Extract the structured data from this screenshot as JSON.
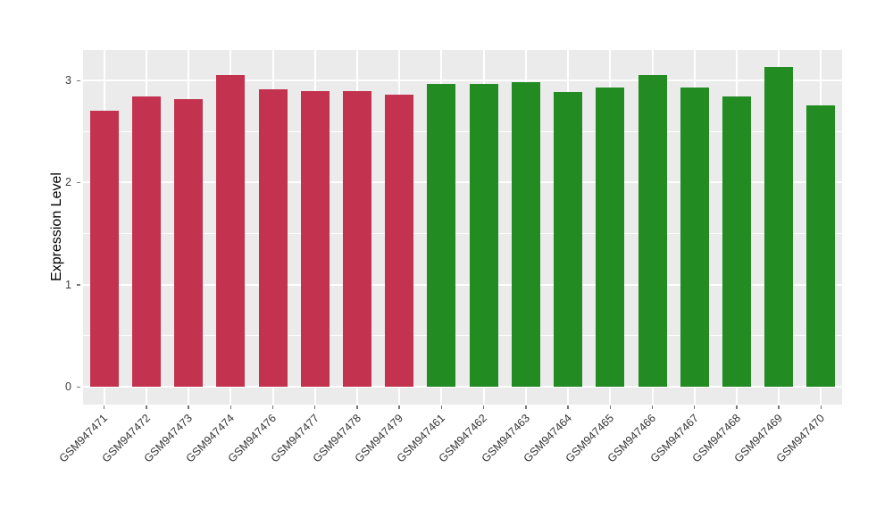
{
  "colors": {
    "red_group": "#C3324E",
    "green_group": "#228B22",
    "panel_background": "#EBEBEB",
    "gridline": "#FFFFFF",
    "tick_mark": "#777777",
    "axis_text": "#404040",
    "x_label_text": "#333333"
  },
  "chart_data": {
    "type": "bar",
    "title": "",
    "xlabel": "",
    "ylabel": "Expression Level",
    "legend": "none",
    "grid": "on",
    "ylim": [
      -0.17,
      3.3
    ],
    "yticks": [
      0,
      1,
      2,
      3
    ],
    "ytick_labels": [
      "0",
      "1",
      "2",
      "3"
    ],
    "minor_yticks": [
      0.5,
      1.5,
      2.5
    ],
    "xticklabel_angle": 45,
    "categories": [
      "GSM947471",
      "GSM947472",
      "GSM947473",
      "GSM947474",
      "GSM947476",
      "GSM947477",
      "GSM947478",
      "GSM947479",
      "GSM947461",
      "GSM947462",
      "GSM947463",
      "GSM947464",
      "GSM947465",
      "GSM947466",
      "GSM947467",
      "GSM947468",
      "GSM947469",
      "GSM947470"
    ],
    "bars": [
      {
        "label": "GSM947471",
        "value": 2.7,
        "color_key": "red_group"
      },
      {
        "label": "GSM947472",
        "value": 2.84,
        "color_key": "red_group"
      },
      {
        "label": "GSM947473",
        "value": 2.82,
        "color_key": "red_group"
      },
      {
        "label": "GSM947474",
        "value": 3.05,
        "color_key": "red_group"
      },
      {
        "label": "GSM947476",
        "value": 2.91,
        "color_key": "red_group"
      },
      {
        "label": "GSM947477",
        "value": 2.9,
        "color_key": "red_group"
      },
      {
        "label": "GSM947478",
        "value": 2.9,
        "color_key": "red_group"
      },
      {
        "label": "GSM947479",
        "value": 2.86,
        "color_key": "red_group"
      },
      {
        "label": "GSM947461",
        "value": 2.97,
        "color_key": "green_group"
      },
      {
        "label": "GSM947462",
        "value": 2.97,
        "color_key": "green_group"
      },
      {
        "label": "GSM947463",
        "value": 2.98,
        "color_key": "green_group"
      },
      {
        "label": "GSM947464",
        "value": 2.89,
        "color_key": "green_group"
      },
      {
        "label": "GSM947465",
        "value": 2.93,
        "color_key": "green_group"
      },
      {
        "label": "GSM947466",
        "value": 3.05,
        "color_key": "green_group"
      },
      {
        "label": "GSM947467",
        "value": 2.93,
        "color_key": "green_group"
      },
      {
        "label": "GSM947468",
        "value": 2.84,
        "color_key": "green_group"
      },
      {
        "label": "GSM947469",
        "value": 3.13,
        "color_key": "green_group"
      },
      {
        "label": "GSM947470",
        "value": 2.76,
        "color_key": "green_group"
      }
    ]
  }
}
